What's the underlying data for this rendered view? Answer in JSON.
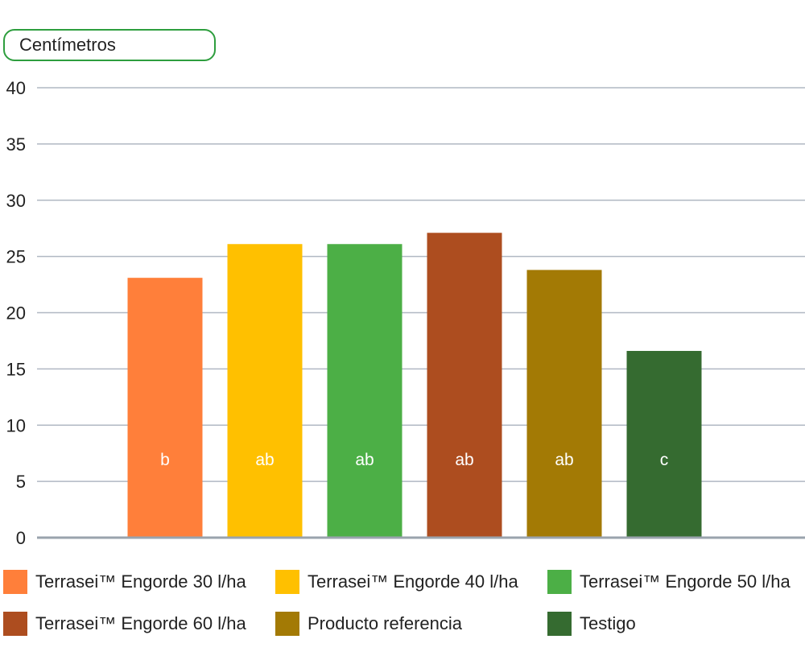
{
  "y_unit_label": "Centímetros",
  "chart_data": {
    "type": "bar",
    "categories": [
      "Terrasei™ Engorde 30 l/ha",
      "Terrasei™ Engorde 40 l/ha",
      "Terrasei™ Engorde 50 l/ha",
      "Terrasei™ Engorde 60 l/ha",
      "Producto referencia",
      "Testigo"
    ],
    "values": [
      23.1,
      26.1,
      26.1,
      27.1,
      23.8,
      16.6
    ],
    "bar_labels": [
      "b",
      "ab",
      "ab",
      "ab",
      "ab",
      "c"
    ],
    "colors": [
      "#ff7f3a",
      "#ffc000",
      "#4caf46",
      "#ad4d1f",
      "#a37a05",
      "#356b30"
    ],
    "ylabel": "Centímetros",
    "ylim": [
      0,
      40
    ],
    "yticks": [
      "0",
      "5",
      "10",
      "15",
      "20",
      "25",
      "30",
      "35",
      "40"
    ],
    "grid": true,
    "legend_position": "bottom"
  },
  "colors": {
    "grid": "#b0b8c3",
    "axis": "#9aa3ad",
    "unit_box_border": "#2e9e3e"
  }
}
